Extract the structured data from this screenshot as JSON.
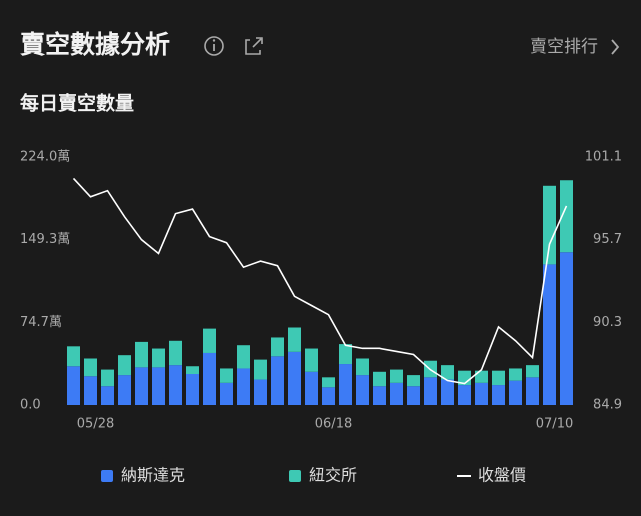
{
  "header": {
    "title": "賣空數據分析",
    "link": "賣空排行"
  },
  "chart_data": {
    "type": "stacked-bar-line",
    "title": "每日賣空數量",
    "categories": [
      null,
      "05/28",
      null,
      null,
      null,
      null,
      null,
      null,
      null,
      null,
      null,
      null,
      null,
      null,
      null,
      "06/18",
      null,
      null,
      null,
      null,
      null,
      null,
      null,
      null,
      null,
      null,
      null,
      null,
      "07/10",
      null
    ],
    "series": [
      {
        "name": "納斯達克",
        "color": "#3d7bf5",
        "values": [
          35,
          26,
          17,
          27,
          34,
          34,
          36,
          28,
          47,
          20,
          33,
          23,
          44,
          48,
          30,
          16,
          37,
          27,
          17,
          20,
          17,
          25,
          23,
          18,
          20,
          18,
          22,
          25,
          127,
          138
        ]
      },
      {
        "name": "紐交所",
        "color": "#3ec9b4",
        "values": [
          18,
          16,
          15,
          18,
          23,
          17,
          22,
          7,
          22,
          13,
          21,
          18,
          17,
          22,
          21,
          9,
          18,
          15,
          13,
          12,
          10,
          15,
          13,
          13,
          11,
          13,
          11,
          11,
          71,
          65
        ]
      },
      {
        "name": "收盤價",
        "color": "#ffffff",
        "axis": "y2",
        "values": [
          99.7,
          98.5,
          98.9,
          97.2,
          95.7,
          94.8,
          97.4,
          97.7,
          95.9,
          95.5,
          93.9,
          94.3,
          94.0,
          92.0,
          91.4,
          90.8,
          88.8,
          88.6,
          88.6,
          88.4,
          88.2,
          87.2,
          86.5,
          86.3,
          87.2,
          90.0,
          89.1,
          88.0,
          95.4,
          97.9
        ]
      }
    ],
    "ylim": [
      0,
      224
    ],
    "yticks": [
      {
        "value": 0,
        "label": "0.0"
      },
      {
        "value": 74.7,
        "label": "74.7萬"
      },
      {
        "value": 149.3,
        "label": "149.3萬"
      },
      {
        "value": 224,
        "label": "224.0萬"
      }
    ],
    "y2lim": [
      84.9,
      101.1
    ],
    "y2ticks": [
      84.9,
      90.3,
      95.7,
      101.1
    ],
    "grid": false
  }
}
